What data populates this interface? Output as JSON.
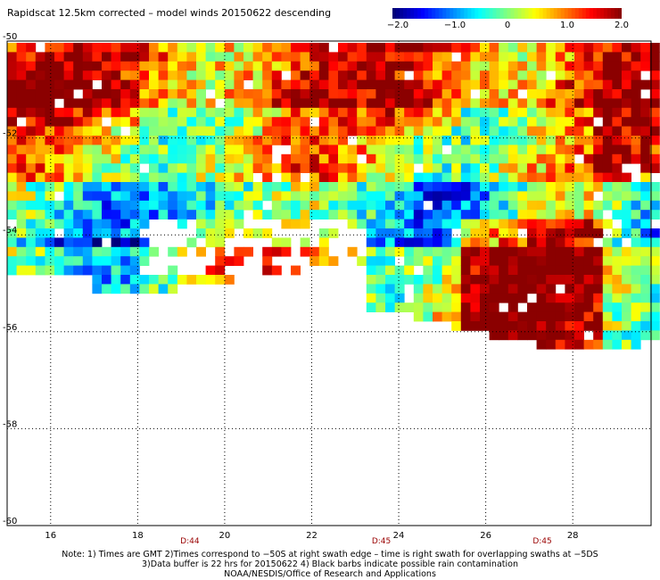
{
  "title": "Rapidscat 12.5km corrected – model winds 20150622 descending",
  "colorbar": {
    "ticks": [
      "−2.0",
      "−1.0",
      "0",
      "1.0",
      "2.0"
    ],
    "tick_values": [
      -2.0,
      -1.0,
      0,
      1.0,
      2.0
    ],
    "range": [
      -2.0,
      2.0
    ],
    "colors": [
      "#00007a",
      "#0000ff",
      "#0080ff",
      "#00ffff",
      "#80ff80",
      "#ffff00",
      "#ff8000",
      "#ff0000",
      "#8b0000"
    ]
  },
  "map": {
    "lat_labels": [
      "-50",
      "-52",
      "-54",
      "-56",
      "-58",
      "-60"
    ],
    "lat_values": [
      -50,
      -52,
      -54,
      -56,
      -58,
      -60
    ],
    "lon_labels": [
      "16",
      "18",
      "20",
      "22",
      "24",
      "26",
      "28"
    ],
    "lon_values": [
      16,
      18,
      20,
      22,
      24,
      26,
      28
    ],
    "lon_range": [
      15.0,
      29.8
    ],
    "lat_range": [
      -50,
      -60
    ],
    "grid": "dotted",
    "time_labels": [
      {
        "text": "D:44",
        "lon": 19.2
      },
      {
        "text": "D:45",
        "lon": 23.6
      },
      {
        "text": "D:45",
        "lon": 27.3
      }
    ]
  },
  "notes": {
    "line1": "Note: 1) Times are GMT 2)Times correspond to −50S at right swath edge – time is right swath for overlapping swaths at −5DS",
    "line2": "3)Data buffer is 22 hrs for 20150622 4) Black barbs indicate possible rain contamination",
    "line3": "NOAA/NESDIS/Office of Research and Applications"
  }
}
